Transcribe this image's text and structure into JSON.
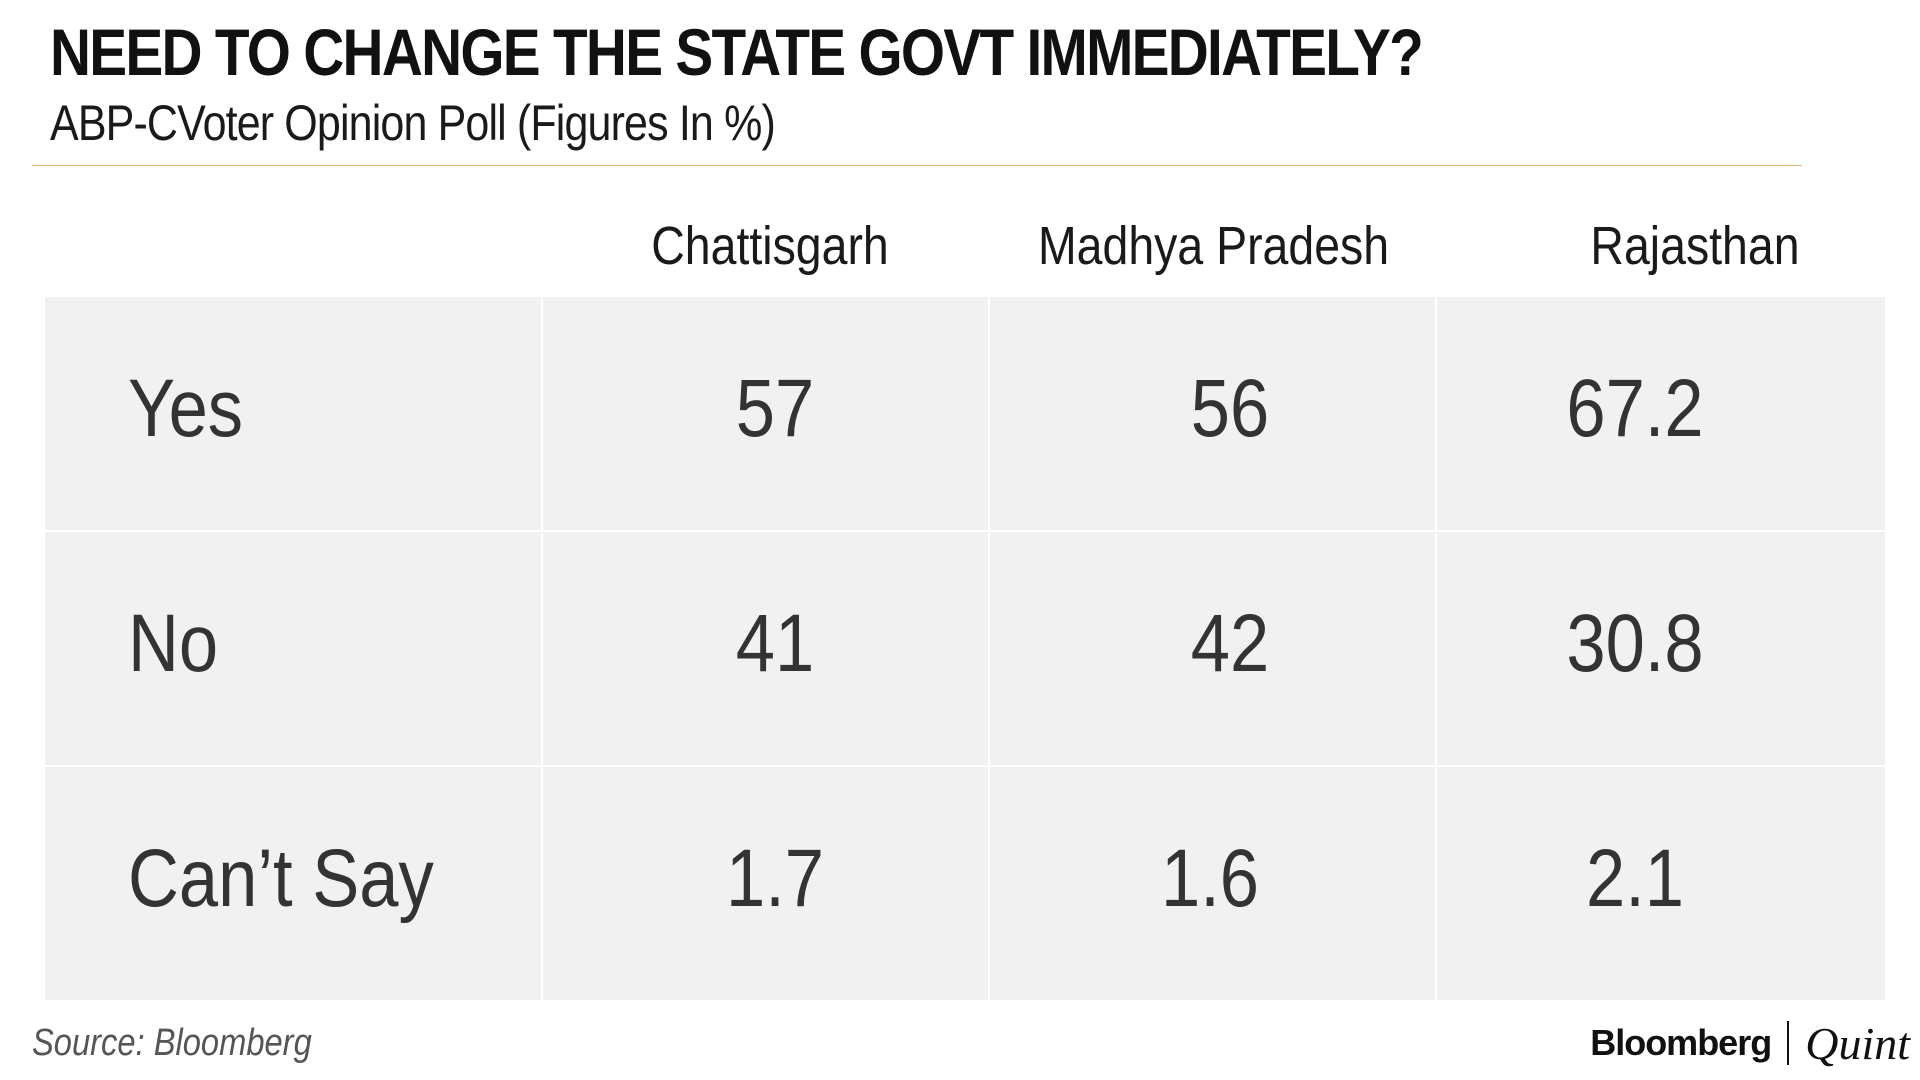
{
  "chart_data": {
    "type": "table",
    "title": "NEED TO CHANGE THE STATE GOVT IMMEDIATELY?",
    "subtitle": "ABP-CVoter Opinion Poll (Figures In %)",
    "columns": [
      "Chattisgarh",
      "Madhya Pradesh",
      "Rajasthan"
    ],
    "rows": [
      {
        "label": "Yes",
        "values": [
          "57",
          "56",
          "67.2"
        ]
      },
      {
        "label": "No",
        "values": [
          "41",
          "42",
          "30.8"
        ]
      },
      {
        "label": "Can’t Say",
        "values": [
          "1.7",
          "1.6",
          "2.1"
        ]
      }
    ]
  },
  "footer": {
    "source": "Source: Bloomberg",
    "brand_left": "Bloomberg",
    "brand_right": "Quint"
  }
}
